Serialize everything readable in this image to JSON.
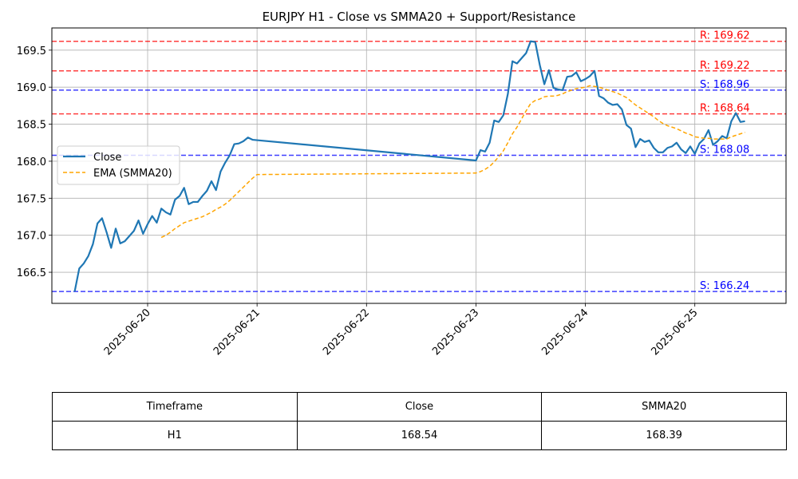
{
  "chart_data": {
    "type": "line",
    "title": "EURJPY H1 - Close vs SMMA20 + Support/Resistance",
    "xlabel": "",
    "ylabel": "",
    "xlim": [
      "2025-06-19 03:00",
      "2025-06-25 20:00"
    ],
    "ylim": [
      166.08,
      169.8
    ],
    "x_ticks": [
      "2025-06-20",
      "2025-06-21",
      "2025-06-22",
      "2025-06-23",
      "2025-06-24",
      "2025-06-25"
    ],
    "y_ticks": [
      "166.5",
      "167.0",
      "167.5",
      "168.0",
      "168.5",
      "169.0",
      "169.5"
    ],
    "grid": true,
    "legend_position": "center-left",
    "series": [
      {
        "name": "Close",
        "color": "#1f77b4",
        "style": "solid",
        "points": [
          [
            "2025-06-19 08:00",
            166.24
          ],
          [
            "2025-06-19 09:00",
            166.55
          ],
          [
            "2025-06-19 10:00",
            166.62
          ],
          [
            "2025-06-19 11:00",
            166.72
          ],
          [
            "2025-06-19 12:00",
            166.88
          ],
          [
            "2025-06-19 13:00",
            167.16
          ],
          [
            "2025-06-19 14:00",
            167.23
          ],
          [
            "2025-06-19 15:00",
            167.04
          ],
          [
            "2025-06-19 16:00",
            166.83
          ],
          [
            "2025-06-19 17:00",
            167.09
          ],
          [
            "2025-06-19 18:00",
            166.89
          ],
          [
            "2025-06-19 19:00",
            166.92
          ],
          [
            "2025-06-19 20:00",
            166.99
          ],
          [
            "2025-06-19 21:00",
            167.06
          ],
          [
            "2025-06-19 22:00",
            167.2
          ],
          [
            "2025-06-19 23:00",
            167.02
          ],
          [
            "2025-06-20 00:00",
            167.15
          ],
          [
            "2025-06-20 01:00",
            167.26
          ],
          [
            "2025-06-20 02:00",
            167.17
          ],
          [
            "2025-06-20 03:00",
            167.36
          ],
          [
            "2025-06-20 04:00",
            167.31
          ],
          [
            "2025-06-20 05:00",
            167.28
          ],
          [
            "2025-06-20 06:00",
            167.48
          ],
          [
            "2025-06-20 07:00",
            167.53
          ],
          [
            "2025-06-20 08:00",
            167.64
          ],
          [
            "2025-06-20 09:00",
            167.42
          ],
          [
            "2025-06-20 10:00",
            167.45
          ],
          [
            "2025-06-20 11:00",
            167.45
          ],
          [
            "2025-06-20 12:00",
            167.53
          ],
          [
            "2025-06-20 13:00",
            167.6
          ],
          [
            "2025-06-20 14:00",
            167.73
          ],
          [
            "2025-06-20 15:00",
            167.61
          ],
          [
            "2025-06-20 16:00",
            167.86
          ],
          [
            "2025-06-20 17:00",
            167.98
          ],
          [
            "2025-06-20 18:00",
            168.08
          ],
          [
            "2025-06-20 19:00",
            168.23
          ],
          [
            "2025-06-20 20:00",
            168.24
          ],
          [
            "2025-06-20 21:00",
            168.27
          ],
          [
            "2025-06-20 22:00",
            168.32
          ],
          [
            "2025-06-20 23:00",
            168.29
          ],
          [
            "2025-06-23 00:00",
            168.01
          ],
          [
            "2025-06-23 01:00",
            168.15
          ],
          [
            "2025-06-23 02:00",
            168.13
          ],
          [
            "2025-06-23 03:00",
            168.25
          ],
          [
            "2025-06-23 04:00",
            168.55
          ],
          [
            "2025-06-23 05:00",
            168.53
          ],
          [
            "2025-06-23 06:00",
            168.62
          ],
          [
            "2025-06-23 07:00",
            168.91
          ],
          [
            "2025-06-23 08:00",
            169.35
          ],
          [
            "2025-06-23 09:00",
            169.32
          ],
          [
            "2025-06-23 10:00",
            169.39
          ],
          [
            "2025-06-23 11:00",
            169.46
          ],
          [
            "2025-06-23 12:00",
            169.62
          ],
          [
            "2025-06-23 13:00",
            169.61
          ],
          [
            "2025-06-23 14:00",
            169.3
          ],
          [
            "2025-06-23 15:00",
            169.04
          ],
          [
            "2025-06-23 16:00",
            169.23
          ],
          [
            "2025-06-23 17:00",
            168.99
          ],
          [
            "2025-06-23 18:00",
            168.97
          ],
          [
            "2025-06-23 19:00",
            168.96
          ],
          [
            "2025-06-23 20:00",
            169.14
          ],
          [
            "2025-06-23 21:00",
            169.15
          ],
          [
            "2025-06-23 22:00",
            169.2
          ],
          [
            "2025-06-23 23:00",
            169.08
          ],
          [
            "2025-06-24 00:00",
            169.11
          ],
          [
            "2025-06-24 01:00",
            169.15
          ],
          [
            "2025-06-24 02:00",
            169.22
          ],
          [
            "2025-06-24 03:00",
            168.88
          ],
          [
            "2025-06-24 04:00",
            168.85
          ],
          [
            "2025-06-24 05:00",
            168.79
          ],
          [
            "2025-06-24 06:00",
            168.76
          ],
          [
            "2025-06-24 07:00",
            168.77
          ],
          [
            "2025-06-24 08:00",
            168.7
          ],
          [
            "2025-06-24 09:00",
            168.49
          ],
          [
            "2025-06-24 10:00",
            168.44
          ],
          [
            "2025-06-24 11:00",
            168.19
          ],
          [
            "2025-06-24 12:00",
            168.3
          ],
          [
            "2025-06-24 13:00",
            168.26
          ],
          [
            "2025-06-24 14:00",
            168.28
          ],
          [
            "2025-06-24 15:00",
            168.18
          ],
          [
            "2025-06-24 16:00",
            168.12
          ],
          [
            "2025-06-24 17:00",
            168.12
          ],
          [
            "2025-06-24 18:00",
            168.18
          ],
          [
            "2025-06-24 19:00",
            168.2
          ],
          [
            "2025-06-24 20:00",
            168.25
          ],
          [
            "2025-06-24 21:00",
            168.16
          ],
          [
            "2025-06-24 22:00",
            168.11
          ],
          [
            "2025-06-24 23:00",
            168.2
          ],
          [
            "2025-06-25 00:00",
            168.1
          ],
          [
            "2025-06-25 01:00",
            168.24
          ],
          [
            "2025-06-25 02:00",
            168.3
          ],
          [
            "2025-06-25 03:00",
            168.42
          ],
          [
            "2025-06-25 04:00",
            168.22
          ],
          [
            "2025-06-25 05:00",
            168.27
          ],
          [
            "2025-06-25 06:00",
            168.34
          ],
          [
            "2025-06-25 07:00",
            168.31
          ],
          [
            "2025-06-25 08:00",
            168.54
          ],
          [
            "2025-06-25 09:00",
            168.65
          ],
          [
            "2025-06-25 10:00",
            168.53
          ],
          [
            "2025-06-25 11:00",
            168.54
          ]
        ]
      },
      {
        "name": "EMA (SMMA20)",
        "color": "#ffa500",
        "style": "dashed",
        "points": [
          [
            "2025-06-20 03:00",
            166.97
          ],
          [
            "2025-06-20 04:00",
            167.0
          ],
          [
            "2025-06-20 05:00",
            167.04
          ],
          [
            "2025-06-20 06:00",
            167.09
          ],
          [
            "2025-06-20 07:00",
            167.13
          ],
          [
            "2025-06-20 08:00",
            167.17
          ],
          [
            "2025-06-20 09:00",
            167.19
          ],
          [
            "2025-06-20 10:00",
            167.21
          ],
          [
            "2025-06-20 11:00",
            167.23
          ],
          [
            "2025-06-20 12:00",
            167.25
          ],
          [
            "2025-06-20 13:00",
            167.28
          ],
          [
            "2025-06-20 14:00",
            167.31
          ],
          [
            "2025-06-20 15:00",
            167.35
          ],
          [
            "2025-06-20 16:00",
            167.38
          ],
          [
            "2025-06-20 17:00",
            167.42
          ],
          [
            "2025-06-20 18:00",
            167.47
          ],
          [
            "2025-06-20 19:00",
            167.53
          ],
          [
            "2025-06-20 20:00",
            167.59
          ],
          [
            "2025-06-20 21:00",
            167.65
          ],
          [
            "2025-06-20 22:00",
            167.71
          ],
          [
            "2025-06-20 23:00",
            167.77
          ],
          [
            "2025-06-21 00:00",
            167.82
          ],
          [
            "2025-06-23 00:00",
            167.84
          ],
          [
            "2025-06-23 01:00",
            167.86
          ],
          [
            "2025-06-23 02:00",
            167.89
          ],
          [
            "2025-06-23 03:00",
            167.93
          ],
          [
            "2025-06-23 04:00",
            167.99
          ],
          [
            "2025-06-23 05:00",
            168.06
          ],
          [
            "2025-06-23 06:00",
            168.14
          ],
          [
            "2025-06-23 07:00",
            168.25
          ],
          [
            "2025-06-23 08:00",
            168.37
          ],
          [
            "2025-06-23 09:00",
            168.46
          ],
          [
            "2025-06-23 10:00",
            168.57
          ],
          [
            "2025-06-23 11:00",
            168.68
          ],
          [
            "2025-06-23 12:00",
            168.78
          ],
          [
            "2025-06-23 13:00",
            168.82
          ],
          [
            "2025-06-23 14:00",
            168.84
          ],
          [
            "2025-06-23 15:00",
            168.87
          ],
          [
            "2025-06-23 16:00",
            168.88
          ],
          [
            "2025-06-23 17:00",
            168.88
          ],
          [
            "2025-06-23 18:00",
            168.89
          ],
          [
            "2025-06-23 19:00",
            168.91
          ],
          [
            "2025-06-23 20:00",
            168.94
          ],
          [
            "2025-06-23 21:00",
            168.96
          ],
          [
            "2025-06-23 22:00",
            168.98
          ],
          [
            "2025-06-23 23:00",
            168.99
          ],
          [
            "2025-06-24 00:00",
            169.0
          ],
          [
            "2025-06-24 01:00",
            169.02
          ],
          [
            "2025-06-24 02:00",
            169.01
          ],
          [
            "2025-06-24 03:00",
            169.0
          ],
          [
            "2025-06-24 04:00",
            168.98
          ],
          [
            "2025-06-24 05:00",
            168.96
          ],
          [
            "2025-06-24 06:00",
            168.94
          ],
          [
            "2025-06-24 07:00",
            168.92
          ],
          [
            "2025-06-24 08:00",
            168.89
          ],
          [
            "2025-06-24 09:00",
            168.86
          ],
          [
            "2025-06-24 10:00",
            168.81
          ],
          [
            "2025-06-24 11:00",
            168.76
          ],
          [
            "2025-06-24 12:00",
            168.72
          ],
          [
            "2025-06-24 13:00",
            168.68
          ],
          [
            "2025-06-24 14:00",
            168.64
          ],
          [
            "2025-06-24 15:00",
            168.6
          ],
          [
            "2025-06-24 16:00",
            168.55
          ],
          [
            "2025-06-24 17:00",
            168.51
          ],
          [
            "2025-06-24 18:00",
            168.48
          ],
          [
            "2025-06-24 19:00",
            168.46
          ],
          [
            "2025-06-24 20:00",
            168.44
          ],
          [
            "2025-06-24 21:00",
            168.41
          ],
          [
            "2025-06-24 22:00",
            168.38
          ],
          [
            "2025-06-24 23:00",
            168.36
          ],
          [
            "2025-06-25 00:00",
            168.33
          ],
          [
            "2025-06-25 01:00",
            168.32
          ],
          [
            "2025-06-25 02:00",
            168.31
          ],
          [
            "2025-06-25 03:00",
            168.31
          ],
          [
            "2025-06-25 04:00",
            168.3
          ],
          [
            "2025-06-25 05:00",
            168.3
          ],
          [
            "2025-06-25 06:00",
            168.3
          ],
          [
            "2025-06-25 07:00",
            168.3
          ],
          [
            "2025-06-25 08:00",
            168.33
          ],
          [
            "2025-06-25 09:00",
            168.35
          ],
          [
            "2025-06-25 10:00",
            168.37
          ],
          [
            "2025-06-25 11:00",
            168.39
          ]
        ]
      }
    ],
    "levels": [
      {
        "kind": "resistance",
        "value": 169.62,
        "label": "R: 169.62",
        "color": "#ff0000"
      },
      {
        "kind": "resistance",
        "value": 169.22,
        "label": "R: 169.22",
        "color": "#ff0000"
      },
      {
        "kind": "support",
        "value": 168.96,
        "label": "S: 168.96",
        "color": "#0000ff"
      },
      {
        "kind": "resistance",
        "value": 168.64,
        "label": "R: 168.64",
        "color": "#ff0000"
      },
      {
        "kind": "support",
        "value": 168.08,
        "label": "S: 168.08",
        "color": "#0000ff"
      },
      {
        "kind": "support",
        "value": 166.24,
        "label": "S: 166.24",
        "color": "#0000ff"
      }
    ]
  },
  "table": {
    "header": [
      "Timeframe",
      "Close",
      "SMMA20"
    ],
    "rows": [
      [
        "H1",
        "168.54",
        "168.39"
      ]
    ]
  }
}
